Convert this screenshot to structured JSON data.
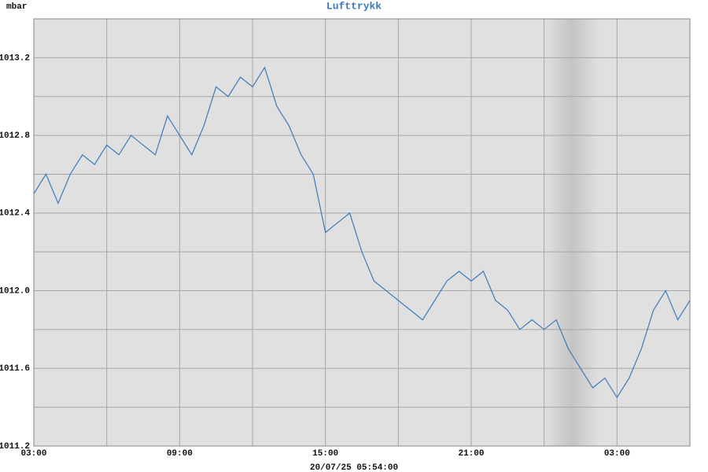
{
  "chart_data": {
    "type": "line",
    "title": "Lufttrykk",
    "y_label": "mbar",
    "subtitle": "20/07/25 05:54:00",
    "x": [
      0,
      0.5,
      1,
      1.5,
      2,
      2.5,
      3,
      3.5,
      4,
      4.5,
      5,
      5.5,
      6,
      6.5,
      7,
      7.5,
      8,
      8.5,
      9,
      9.5,
      10,
      10.5,
      11,
      11.5,
      12,
      12.5,
      13,
      13.5,
      14,
      14.5,
      15,
      15.5,
      16,
      16.5,
      17,
      17.5,
      18,
      18.5,
      19,
      19.5,
      20,
      20.5,
      21,
      21.5,
      22,
      22.5,
      23,
      23.5,
      24,
      24.5,
      25,
      25.5,
      26,
      26.5,
      27
    ],
    "series": [
      {
        "name": "Lufttrykk",
        "color": "#3b7bb8",
        "values": [
          1012.5,
          1012.6,
          1012.45,
          1012.6,
          1012.7,
          1012.65,
          1012.75,
          1012.7,
          1012.8,
          1012.75,
          1012.7,
          1012.9,
          1012.8,
          1012.7,
          1012.85,
          1013.05,
          1013.0,
          1013.1,
          1013.05,
          1013.15,
          1012.95,
          1012.85,
          1012.7,
          1012.6,
          1012.3,
          1012.35,
          1012.4,
          1012.2,
          1012.05,
          1012.0,
          1011.95,
          1011.9,
          1011.85,
          1011.95,
          1012.05,
          1012.1,
          1012.05,
          1012.1,
          1011.95,
          1011.9,
          1011.8,
          1011.85,
          1011.8,
          1011.85,
          1011.7,
          1011.6,
          1011.5,
          1011.55,
          1011.45,
          1011.55,
          1011.7,
          1011.9,
          1012.0,
          1011.85,
          1011.95
        ]
      }
    ],
    "xlim": [
      0,
      27
    ],
    "xticks": [
      {
        "value": 0,
        "label": "03:00"
      },
      {
        "value": 6,
        "label": "09:00"
      },
      {
        "value": 12,
        "label": "15:00"
      },
      {
        "value": 18,
        "label": "21:00"
      },
      {
        "value": 24,
        "label": "03:00"
      }
    ],
    "xgrid": [
      3,
      9,
      15,
      21
    ],
    "ylim": [
      1011.2,
      1013.4
    ],
    "yticks": [
      1011.2,
      1011.6,
      {
        "value": 1012,
        "label": "1012.0"
      },
      1012.4,
      1012.8,
      1013.2
    ],
    "ygrid": [
      1011.4,
      1011.8,
      1012.2,
      1012.6,
      1013.0
    ],
    "grid": true
  }
}
